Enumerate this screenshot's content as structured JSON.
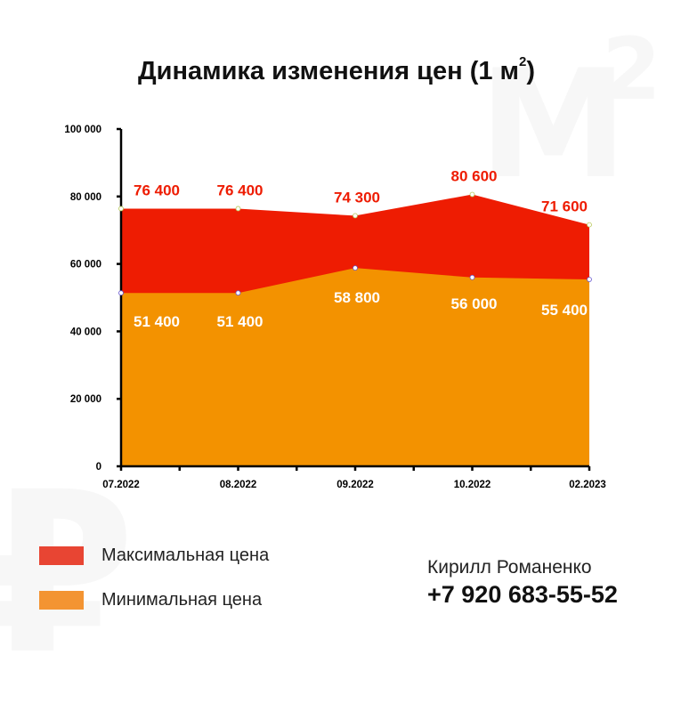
{
  "watermark": {
    "letter": "М",
    "power": "2",
    "currency": "₽"
  },
  "title": {
    "main": "Динамика изменения цен (1 м",
    "sup": "2",
    "tail": ")"
  },
  "chart_data": {
    "type": "area",
    "categories": [
      "07.2022",
      "08.2022",
      "09.2022",
      "10.2022",
      "02.2023"
    ],
    "series": [
      {
        "name": "Максимальная цена",
        "values": [
          76400,
          76400,
          74300,
          80600,
          71600
        ],
        "labels": [
          "76 400",
          "76 400",
          "74 300",
          "80 600",
          "71 600"
        ],
        "color": "#ee1c02"
      },
      {
        "name": "Минимальная цена",
        "values": [
          51400,
          51400,
          58800,
          56000,
          55400
        ],
        "labels": [
          "51 400",
          "51 400",
          "58 800",
          "56 000",
          "55 400"
        ],
        "color": "#f39200"
      }
    ],
    "ylim": [
      0,
      100000
    ],
    "y_ticks": [
      0,
      20000,
      40000,
      60000,
      80000,
      100000
    ],
    "y_tick_labels": [
      "0",
      "20 000",
      "40 000",
      "60 000",
      "80 000",
      "100 000"
    ],
    "grid": false,
    "legend": "bottom-left"
  },
  "legend": [
    {
      "label": "Максимальная цена",
      "color": "#e84533"
    },
    {
      "label": "Минимальная цена",
      "color": "#f39432"
    }
  ],
  "contact": {
    "name": "Кирилл Романенко",
    "phone": "+7 920 683-55-52"
  }
}
